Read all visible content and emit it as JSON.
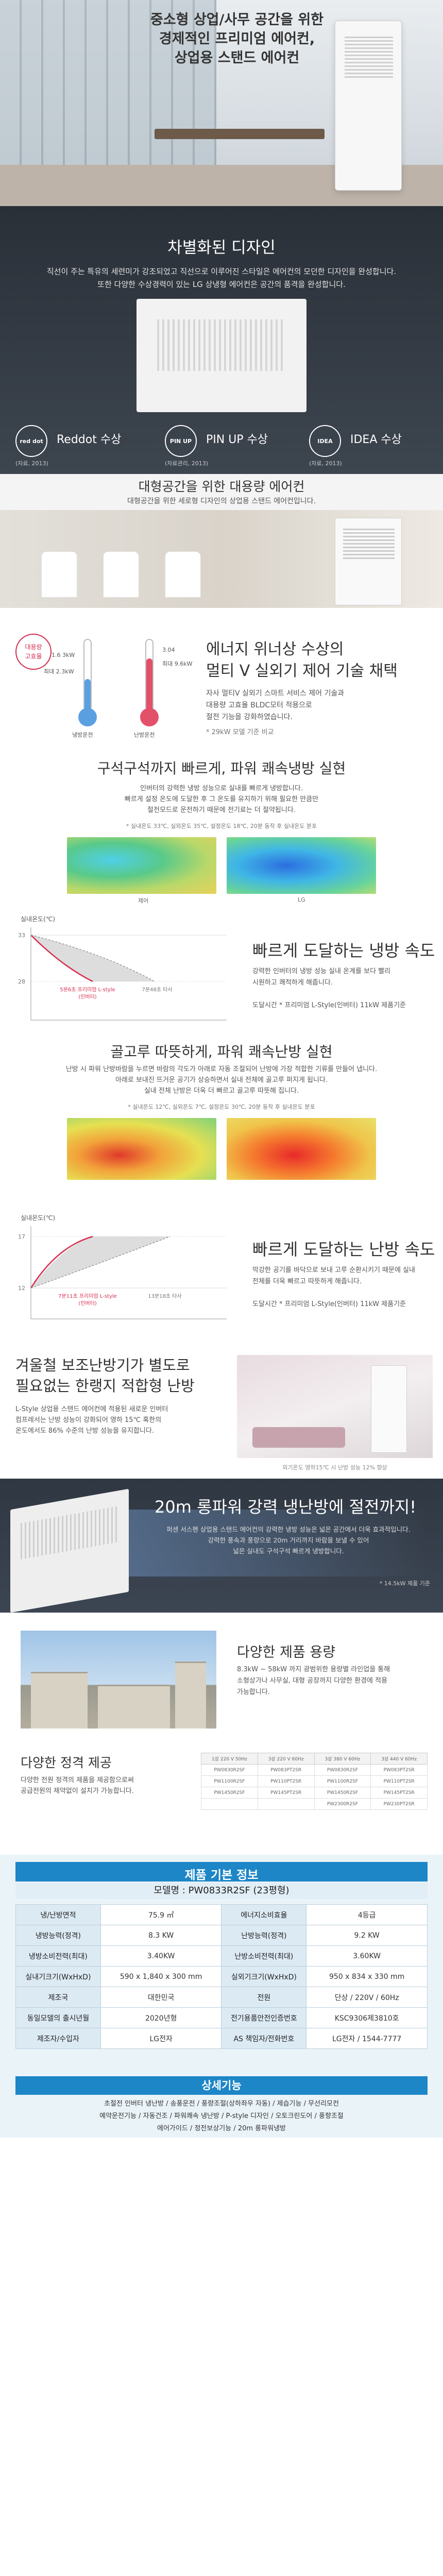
{
  "hero": {
    "title_lines": [
      "중소형 상업/사무 공간을 위한",
      "경제적인 프리미엄 에어컨,",
      "상업용 스탠드 에어컨"
    ]
  },
  "design": {
    "title": "차별화된 디자인",
    "desc_lines": [
      "직선이 주는 특유의 세련미가 강조되었고 직선으로 이루어진 스타일은 에어컨의 모던한 디자인을 완성합니다.",
      "또한 다양한 수상경력이 있는 LG 상냉형 에어컨은 공간의 품격을 완성합니다."
    ],
    "awards": [
      {
        "logo": "red dot",
        "name": "Reddot 수상",
        "note": "(자료, 2013)"
      },
      {
        "logo": "PIN UP",
        "name": "PIN UP 수상",
        "note": "(자료관리, 2013)"
      },
      {
        "logo": "IDEA",
        "name": "IDEA 수상",
        "note": "(자료, 2013)"
      }
    ]
  },
  "large": {
    "title": "대형공간을 위한 대용량 에어컨",
    "desc": "대형공간을 위한 세로형 디자인의 상업용 스탠드 에어컨입니다."
  },
  "energy": {
    "badge_lines": [
      "대용량",
      "고효율"
    ],
    "left_labels": [
      "1.6 3kW",
      "최대 2.3kW"
    ],
    "right_labels": [
      "3.04",
      "최대 9.6kW"
    ],
    "therm_caption_left": "냉방운전",
    "therm_caption_right": "난방운전",
    "title_lines": [
      "에너지 위너상 수상의",
      "멀티 V 실외기 제어 기술 채택"
    ],
    "desc_lines": [
      "자사 멀티V 실외기 스마트 서비스 제어 기술과",
      "대용량 고효율 BLDC모터 적용으로",
      "절전 기능을 강화하였습니다."
    ],
    "foot": "* 29kW 모델 기준 비교"
  },
  "cool": {
    "title": "구석구석까지 빠르게, 파워 쾌속냉방 실현",
    "desc_lines": [
      "인버터의 강력한 냉방 성능으로 실내를 빠르게 냉방합니다.",
      "빠르게 설정 온도에 도달한 후 그 온도를 유지하기 위해 필요한 만큼만",
      "절전모드로 운전하기 때문에 전기료는 더 절약됩니다."
    ],
    "conditions": "* 실내온도 33℃, 실외온도 35℃, 설정온도 18℃, 20분 동작 후 실내온도 분포",
    "left_map_label": "제어",
    "right_map_label": "LG"
  },
  "cool_graph": {
    "ylabel": "실내온도(℃)",
    "y_ticks": [
      "33",
      "28"
    ],
    "series_lg": "5분6초 프리미엄 L-style (인버터)",
    "series_other": "7분48초 타사",
    "title": "빠르게 도달하는 냉방 속도",
    "desc_lines": [
      "강력한 인버터의 냉방 성능 실내 온계를 보다 빨리",
      "시원하고 쾌적하게 해줍니다."
    ],
    "note": "도달시간 * 프리미엄 L-Style(인버터) 11kW 제품기준"
  },
  "heat": {
    "title": "골고루 따뜻하게, 파워 쾌속난방 실현",
    "desc_lines": [
      "난방 시 파워 난방바람을 누르면 바람의 각도가 아래로 자동 조절되어 난방에 가장 적합한 기류를 만들어 냅니다.",
      "아래로 보내진 뜨거운 공기가 상승하면서 실내 전체에 골고루 퍼지게 됩니다.",
      "실내 전체 난방은 더욱 더 빠르고 골고루 따뜻해 집니다."
    ],
    "conditions": "* 실내온도 12℃, 실외온도 7℃, 설정온도 30℃, 20분 동작 후 실내온도 분포"
  },
  "heat_graph": {
    "ylabel": "실내온도(℃)",
    "y_ticks": [
      "17",
      "12"
    ],
    "series_lg": "7분11초 프리미엄 L-style (인버터)",
    "series_other": "13분18초 타사",
    "title": "빠르게 도달하는 난방 속도",
    "desc_lines": [
      "막강한 공기를 바닥으로 보내 고루 순환시키기 때문에 실내",
      "전체를 더욱 빠르고 따뜻하게 해줍니다."
    ],
    "note": "도달시간 * 프리미엄 L-Style(인버터) 11kW 제품기준"
  },
  "aux": {
    "title_lines": [
      "겨울철 보조난방기가 별도로",
      "필요없는 한랭지 적합형 난방"
    ],
    "desc_lines": [
      "L-Style 상업용 스탠드 에어컨에 적용된 새로운 인버터",
      "컴프레서는 난방 성능이 강화되어 영하 15℃ 혹한의",
      "온도에서도 86% 수준의 난방 성능을 유지합니다."
    ],
    "caption": "외기온도 영하15℃ 시 난방 성능 12% 향상"
  },
  "long": {
    "title": "20m 롱파워 강력 냉난방에 절전까지!",
    "desc_lines": [
      "퍼센 서스펜 상업용 스탠드 에어컨의 강력한 냉방 성능은 넓은 공간에서 더욱 효과적입니다.",
      "강력한 풍속과 풍량으로 20m 거리까지 바람을 보낼 수 있어",
      "넓은 실내도 구석구석 빠르게 냉방합니다."
    ],
    "foot": "* 14.5kW 제품 기준"
  },
  "variety": {
    "title": "다양한 제품 용량",
    "desc_lines": [
      "8.3kW ~ 58kW 까지 광범위한 용량별 라인업을 통해",
      "소형상가나 사무실, 대형 공장까지 다양한 환경에 적용",
      "가능합니다."
    ]
  },
  "ratings": {
    "title": "다양한 정격 제공",
    "desc_lines": [
      "다양한 전원 정격의 제품을 제공함으로써",
      "공급전원의 제약없이 설치가 가능합니다."
    ],
    "headers": [
      "1상 220 V 50Hz",
      "3상 220 V 60Hz",
      "3상 380 V 60Hz",
      "3상 440 V 60Hz"
    ],
    "rows": [
      [
        "PW0830R2SF",
        "PW083PT2SR",
        "PW0830R2SF",
        "PW083PT2SR"
      ],
      [
        "PW1100R2SF",
        "PW110PT2SR",
        "PW1100R2SF",
        "PW110PT2SR"
      ],
      [
        "PW1450R2SF",
        "PW145PT2SR",
        "PW1450R2SF",
        "PW145PT2SR"
      ],
      [
        "",
        "",
        "PW2300R2SF",
        "PW230PT2SR"
      ]
    ]
  },
  "spec": {
    "title": "제품 기본 정보",
    "model": "모델명 : PW0833R2SF (23평형)",
    "rows": [
      [
        "냉/난방면적",
        "75.9 ㎡",
        "에너지소비효율",
        "4등급"
      ],
      [
        "냉방능력(정격)",
        "8.3 KW",
        "난방능력(정격)",
        "9.2 KW"
      ],
      [
        "냉방소비전력(최대)",
        "3.40KW",
        "난방소비전력(최대)",
        "3.60KW"
      ],
      [
        "실내기크기(WxHxD)",
        "590 x 1,840 x 300 mm",
        "실외기크기(WxHxD)",
        "950 x 834 x 330 mm"
      ],
      [
        "제조국",
        "대한민국",
        "전원",
        "단상 / 220V / 60Hz"
      ],
      [
        "동일모델의 출시년월",
        "2020년형",
        "전기용품안전인증번호",
        "KSC9306제3810호"
      ],
      [
        "제조자/수입자",
        "LG전자",
        "AS 책임자/전화번호",
        "LG전자 / 1544-7777"
      ]
    ],
    "details_title": "상세기능",
    "details_lines": [
      "초절전 인버터 냉난방 / 송풍운전 / 풍량조절(상하좌우 자동) / 제습기능 / 무선리모컨",
      "예약운전기능 / 자동건조 / 파워쾌속 냉난방 / P-style 디자인 / 오토크린도어 / 풍향조절",
      "에어가이드 / 정전보상기능 / 20m 롱파워냉방"
    ]
  }
}
